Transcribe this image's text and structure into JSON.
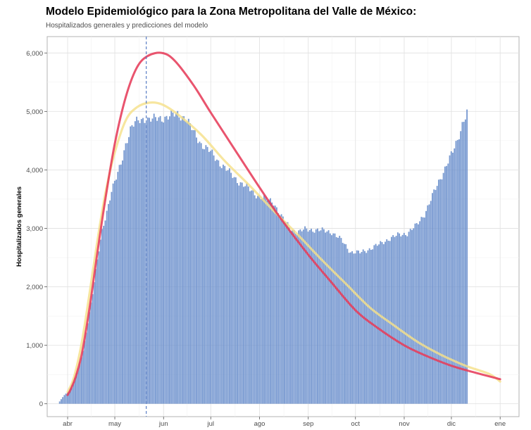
{
  "chart_data": {
    "type": "bar",
    "title": "Modelo Epidemiológico para la Zona Metropolitana del Valle de México:",
    "subtitle": "Hospitalizados generales y predicciones del modelo",
    "ylabel": "Hospitalizados generales",
    "xlabel": "",
    "x_ticks": [
      {
        "date": "2020-04-01",
        "label": "abr"
      },
      {
        "date": "2020-05-01",
        "label": "may"
      },
      {
        "date": "2020-06-01",
        "label": "jun"
      },
      {
        "date": "2020-07-01",
        "label": "jul"
      },
      {
        "date": "2020-08-01",
        "label": "ago"
      },
      {
        "date": "2020-09-01",
        "label": "sep"
      },
      {
        "date": "2020-10-01",
        "label": "oct"
      },
      {
        "date": "2020-11-01",
        "label": "nov"
      },
      {
        "date": "2020-12-01",
        "label": "dic"
      },
      {
        "date": "2021-01-01",
        "label": "ene"
      }
    ],
    "y_ticks": [
      {
        "value": 0,
        "label": "0"
      },
      {
        "value": 1000,
        "label": "1,000"
      },
      {
        "value": 2000,
        "label": "2,000"
      },
      {
        "value": 3000,
        "label": "3,000"
      },
      {
        "value": 4000,
        "label": "4,000"
      },
      {
        "value": 5000,
        "label": "5,000"
      },
      {
        "value": 6000,
        "label": "6,000"
      }
    ],
    "xlim": [
      "2020-03-19",
      "2021-01-13"
    ],
    "ylim": [
      -220,
      6280
    ],
    "grid": true,
    "vline_date": "2020-05-21",
    "bars": {
      "color": "#6a8fcc",
      "start_date": "2020-03-27",
      "end_date": "2020-12-11",
      "keypoints": [
        [
          "2020-03-27",
          40
        ],
        [
          "2020-03-30",
          150
        ],
        [
          "2020-04-02",
          220
        ],
        [
          "2020-04-05",
          380
        ],
        [
          "2020-04-08",
          600
        ],
        [
          "2020-04-11",
          900
        ],
        [
          "2020-04-14",
          1400
        ],
        [
          "2020-04-17",
          1900
        ],
        [
          "2020-04-20",
          2450
        ],
        [
          "2020-04-23",
          2950
        ],
        [
          "2020-04-26",
          3300
        ],
        [
          "2020-04-29",
          3650
        ],
        [
          "2020-05-02",
          3850
        ],
        [
          "2020-05-05",
          4100
        ],
        [
          "2020-05-08",
          4450
        ],
        [
          "2020-05-11",
          4700
        ],
        [
          "2020-05-14",
          4800
        ],
        [
          "2020-05-17",
          4850
        ],
        [
          "2020-05-20",
          4880
        ],
        [
          "2020-05-25",
          4860
        ],
        [
          "2020-05-31",
          4890
        ],
        [
          "2020-06-05",
          4920
        ],
        [
          "2020-06-10",
          4950
        ],
        [
          "2020-06-15",
          4900
        ],
        [
          "2020-06-20",
          4650
        ],
        [
          "2020-06-25",
          4450
        ],
        [
          "2020-07-01",
          4300
        ],
        [
          "2020-07-07",
          4120
        ],
        [
          "2020-07-13",
          3950
        ],
        [
          "2020-07-19",
          3800
        ],
        [
          "2020-07-25",
          3680
        ],
        [
          "2020-07-31",
          3560
        ],
        [
          "2020-08-05",
          3500
        ],
        [
          "2020-08-10",
          3450
        ],
        [
          "2020-08-15",
          3200
        ],
        [
          "2020-08-20",
          3020
        ],
        [
          "2020-08-25",
          2930
        ],
        [
          "2020-08-30",
          2980
        ],
        [
          "2020-09-04",
          2980
        ],
        [
          "2020-09-10",
          2960
        ],
        [
          "2020-09-16",
          2940
        ],
        [
          "2020-09-22",
          2800
        ],
        [
          "2020-09-28",
          2600
        ],
        [
          "2020-10-04",
          2580
        ],
        [
          "2020-10-10",
          2650
        ],
        [
          "2020-10-16",
          2720
        ],
        [
          "2020-10-22",
          2820
        ],
        [
          "2020-10-28",
          2880
        ],
        [
          "2020-11-03",
          2920
        ],
        [
          "2020-11-09",
          3050
        ],
        [
          "2020-11-14",
          3250
        ],
        [
          "2020-11-19",
          3550
        ],
        [
          "2020-11-24",
          3850
        ],
        [
          "2020-11-28",
          4100
        ],
        [
          "2020-12-02",
          4300
        ],
        [
          "2020-12-05",
          4500
        ],
        [
          "2020-12-08",
          4800
        ],
        [
          "2020-12-11",
          5000
        ]
      ]
    },
    "series": [
      {
        "type": "line",
        "color": "#e63c5a",
        "points": [
          [
            "2020-04-01",
            150
          ],
          [
            "2020-04-03",
            250
          ],
          [
            "2020-04-06",
            450
          ],
          [
            "2020-04-10",
            850
          ],
          [
            "2020-04-15",
            1650
          ],
          [
            "2020-04-20",
            2600
          ],
          [
            "2020-04-25",
            3500
          ],
          [
            "2020-05-01",
            4450
          ],
          [
            "2020-05-08",
            5250
          ],
          [
            "2020-05-15",
            5750
          ],
          [
            "2020-05-22",
            5950
          ],
          [
            "2020-05-31",
            6000
          ],
          [
            "2020-06-08",
            5870
          ],
          [
            "2020-06-20",
            5450
          ],
          [
            "2020-07-01",
            4980
          ],
          [
            "2020-07-15",
            4400
          ],
          [
            "2020-08-01",
            3700
          ],
          [
            "2020-08-15",
            3150
          ],
          [
            "2020-09-01",
            2550
          ],
          [
            "2020-09-15",
            2100
          ],
          [
            "2020-10-01",
            1600
          ],
          [
            "2020-10-15",
            1300
          ],
          [
            "2020-11-01",
            1000
          ],
          [
            "2020-11-15",
            820
          ],
          [
            "2020-12-01",
            650
          ],
          [
            "2020-12-15",
            540
          ],
          [
            "2021-01-01",
            420
          ]
        ]
      },
      {
        "type": "line",
        "color": "#f5e08a",
        "points": [
          [
            "2020-04-01",
            200
          ],
          [
            "2020-04-05",
            450
          ],
          [
            "2020-04-10",
            1050
          ],
          [
            "2020-04-15",
            1900
          ],
          [
            "2020-04-20",
            2800
          ],
          [
            "2020-04-25",
            3600
          ],
          [
            "2020-05-01",
            4300
          ],
          [
            "2020-05-08",
            4850
          ],
          [
            "2020-05-15",
            5070
          ],
          [
            "2020-05-23",
            5150
          ],
          [
            "2020-05-31",
            5120
          ],
          [
            "2020-06-10",
            4950
          ],
          [
            "2020-06-25",
            4600
          ],
          [
            "2020-07-10",
            4150
          ],
          [
            "2020-07-25",
            3750
          ],
          [
            "2020-08-10",
            3300
          ],
          [
            "2020-08-25",
            2900
          ],
          [
            "2020-09-10",
            2450
          ],
          [
            "2020-09-25",
            2050
          ],
          [
            "2020-10-10",
            1650
          ],
          [
            "2020-10-25",
            1350
          ],
          [
            "2020-11-10",
            1050
          ],
          [
            "2020-11-25",
            830
          ],
          [
            "2020-12-10",
            650
          ],
          [
            "2020-12-25",
            510
          ],
          [
            "2021-01-01",
            380
          ]
        ]
      }
    ]
  }
}
